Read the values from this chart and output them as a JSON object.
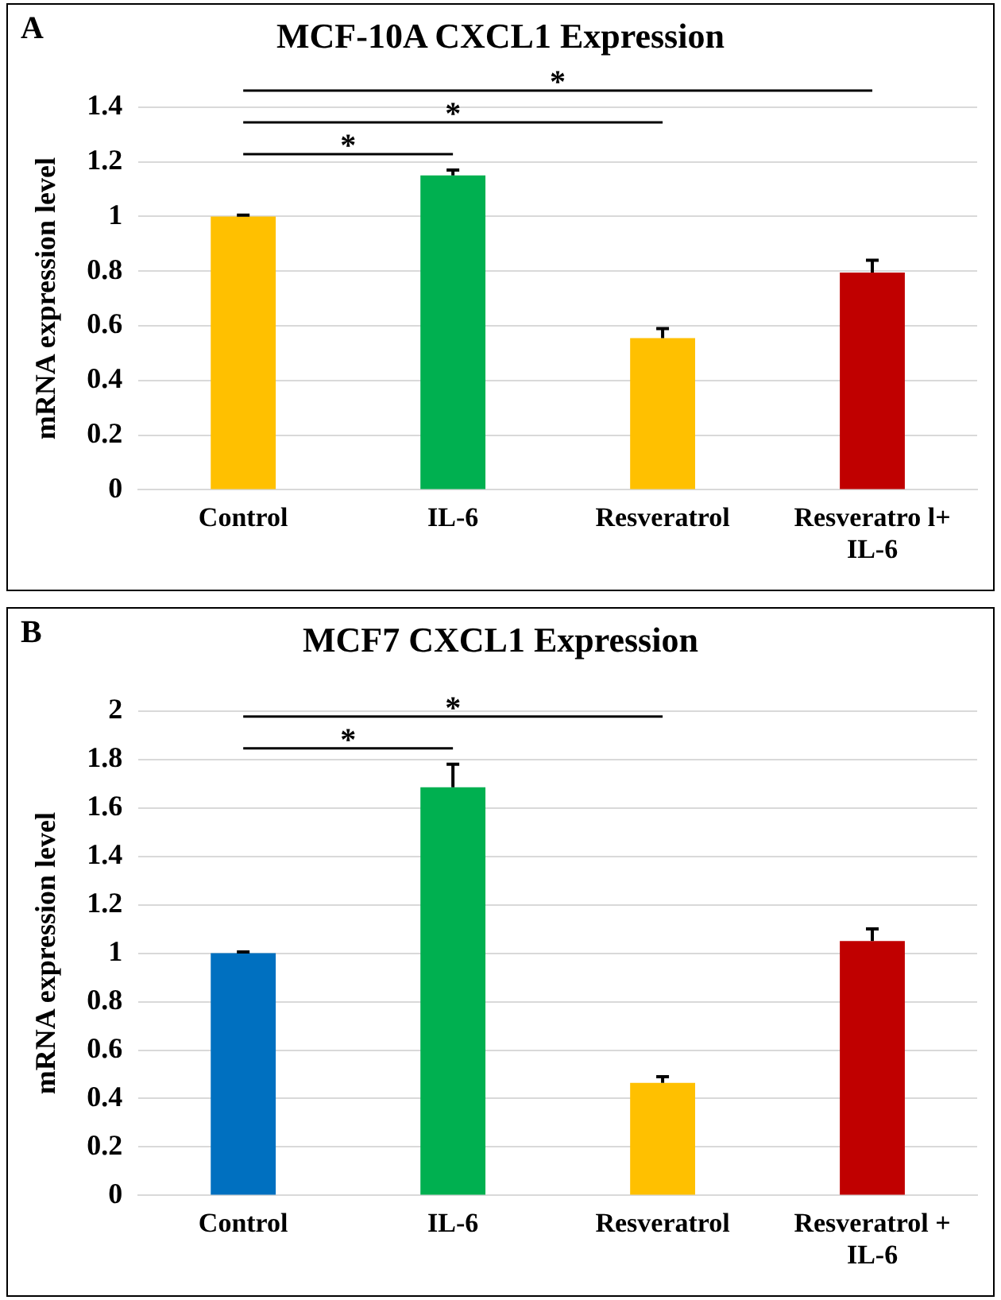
{
  "chart_data": [
    {
      "type": "bar",
      "title": "MCF-10A CXCL1 Expression",
      "ylabel": "mRNA expression level",
      "categories": [
        "Control",
        "IL-6",
        "Resveratrol",
        "Resveratro l+\nIL-6"
      ],
      "values": [
        1.0,
        1.15,
        0.555,
        0.795
      ],
      "colors": [
        "#ffc000",
        "#00b050",
        "#ffc000",
        "#c00000"
      ],
      "errors": [
        [
          1.0,
          1.005
        ],
        [
          1.15,
          1.17
        ],
        [
          0.555,
          0.59
        ],
        [
          0.795,
          0.84
        ]
      ],
      "ylim": [
        0,
        1.4
      ],
      "yticks": [
        0,
        0.2,
        0.4,
        0.6,
        0.8,
        1,
        1.2,
        1.4
      ],
      "grid": "y",
      "annotations": [
        "A",
        "*",
        "*",
        "*"
      ]
    },
    {
      "type": "bar",
      "title": "MCF7 CXCL1 Expression",
      "ylabel": "mRNA expression level",
      "categories": [
        "Control",
        "IL-6",
        "Resveratrol",
        "Resveratrol +\nIL-6"
      ],
      "values": [
        1.0,
        1.685,
        0.465,
        1.05
      ],
      "colors": [
        "#0070c0",
        "#00b050",
        "#ffc000",
        "#c00000"
      ],
      "errors": [
        [
          1.0,
          1.005
        ],
        [
          1.685,
          1.78
        ],
        [
          0.465,
          0.49
        ],
        [
          1.05,
          1.1
        ]
      ],
      "ylim": [
        0,
        2
      ],
      "yticks": [
        0,
        0.2,
        0.4,
        0.6,
        0.8,
        1,
        1.2,
        1.4,
        1.6,
        1.8,
        2
      ],
      "grid": "y",
      "annotations": [
        "B",
        "*",
        "*"
      ]
    }
  ]
}
